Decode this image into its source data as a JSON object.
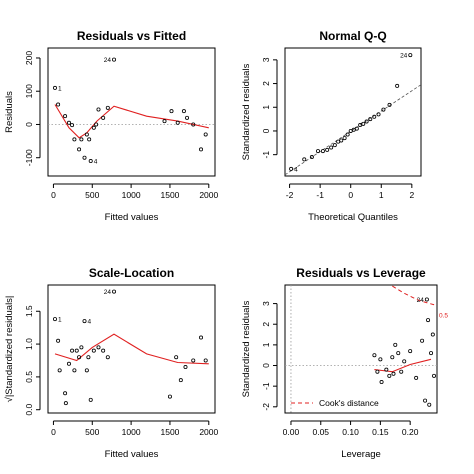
{
  "chart_data": [
    {
      "id": "resid-fitted",
      "type": "scatter",
      "title": "Residuals vs Fitted",
      "xlabel": "Fitted values",
      "ylabel": "Residuals",
      "xlim": [
        -70,
        2080
      ],
      "ylim": [
        -155,
        230
      ],
      "xticks": [
        "0",
        "500",
        "1000",
        "1500",
        "2000"
      ],
      "xtick_values": [
        0,
        500,
        1000,
        1500,
        2000
      ],
      "yticks": [
        "-100",
        "0",
        "100",
        "200"
      ],
      "ytick_values": [
        -100,
        0,
        100,
        200
      ],
      "points": [
        [
          20,
          110
        ],
        [
          60,
          60
        ],
        [
          150,
          25
        ],
        [
          200,
          5
        ],
        [
          240,
          -2
        ],
        [
          270,
          -45
        ],
        [
          330,
          -75
        ],
        [
          360,
          -45
        ],
        [
          400,
          -100
        ],
        [
          430,
          -30
        ],
        [
          460,
          -45
        ],
        [
          480,
          -110
        ],
        [
          520,
          -10
        ],
        [
          550,
          0
        ],
        [
          580,
          45
        ],
        [
          640,
          20
        ],
        [
          700,
          50
        ],
        [
          780,
          195
        ],
        [
          1430,
          10
        ],
        [
          1520,
          40
        ],
        [
          1600,
          5
        ],
        [
          1680,
          40
        ],
        [
          1720,
          20
        ],
        [
          1800,
          0
        ],
        [
          1900,
          -75
        ],
        [
          1960,
          -30
        ]
      ],
      "point_labels": [
        {
          "index": 17,
          "text": "24"
        },
        {
          "index": 0,
          "text": "1"
        },
        {
          "index": 11,
          "text": "4"
        }
      ],
      "smooth": [
        [
          20,
          60
        ],
        [
          200,
          -10
        ],
        [
          330,
          -40
        ],
        [
          430,
          -25
        ],
        [
          560,
          10
        ],
        [
          780,
          55
        ],
        [
          1200,
          25
        ],
        [
          1600,
          10
        ],
        [
          2000,
          -10
        ]
      ],
      "refline": {
        "type": "hline",
        "y": 0
      }
    },
    {
      "id": "normal-qq",
      "type": "scatter",
      "title": "Normal Q-Q",
      "xlabel": "Theoretical Quantiles",
      "ylabel": "Standardized residuals",
      "xlim": [
        -2.15,
        2.3
      ],
      "ylim": [
        -1.9,
        3.5
      ],
      "xticks": [
        "-2",
        "-1",
        "0",
        "1",
        "2"
      ],
      "xtick_values": [
        -2,
        -1,
        0,
        1,
        2
      ],
      "yticks": [
        "-1",
        "0",
        "1",
        "2",
        "3"
      ],
      "ytick_values": [
        -1,
        0,
        1,
        2,
        3
      ],
      "points": [
        [
          -1.95,
          -1.6
        ],
        [
          -1.52,
          -1.2
        ],
        [
          -1.27,
          -1.1
        ],
        [
          -1.07,
          -0.85
        ],
        [
          -0.91,
          -0.85
        ],
        [
          -0.77,
          -0.8
        ],
        [
          -0.64,
          -0.7
        ],
        [
          -0.52,
          -0.6
        ],
        [
          -0.41,
          -0.45
        ],
        [
          -0.31,
          -0.4
        ],
        [
          -0.2,
          -0.3
        ],
        [
          -0.1,
          -0.15
        ],
        [
          0.0,
          0.0
        ],
        [
          0.1,
          0.05
        ],
        [
          0.2,
          0.1
        ],
        [
          0.31,
          0.25
        ],
        [
          0.41,
          0.3
        ],
        [
          0.52,
          0.4
        ],
        [
          0.64,
          0.5
        ],
        [
          0.77,
          0.6
        ],
        [
          0.91,
          0.7
        ],
        [
          1.07,
          0.9
        ],
        [
          1.27,
          1.1
        ],
        [
          1.52,
          1.9
        ],
        [
          1.95,
          3.2
        ]
      ],
      "point_labels": [
        {
          "index": 24,
          "text": "24"
        },
        {
          "index": 0,
          "text": "4"
        }
      ],
      "refline": {
        "type": "line",
        "x0": -2.15,
        "y0": -1.85,
        "x1": 2.3,
        "y1": 1.95
      }
    },
    {
      "id": "scale-location",
      "type": "scatter",
      "title": "Scale-Location",
      "xlabel": "Fitted values",
      "ylabel": "√|Standardized residuals|",
      "xlim": [
        -70,
        2080
      ],
      "ylim": [
        -0.05,
        1.9
      ],
      "xticks": [
        "0",
        "500",
        "1000",
        "1500",
        "2000"
      ],
      "xtick_values": [
        0,
        500,
        1000,
        1500,
        2000
      ],
      "yticks": [
        "0.0",
        "0.5",
        "1.0",
        "1.5"
      ],
      "ytick_values": [
        0,
        0.5,
        1.0,
        1.5
      ],
      "points": [
        [
          20,
          1.38
        ],
        [
          60,
          1.05
        ],
        [
          80,
          0.6
        ],
        [
          150,
          0.25
        ],
        [
          160,
          0.1
        ],
        [
          200,
          0.7
        ],
        [
          240,
          0.9
        ],
        [
          270,
          0.6
        ],
        [
          300,
          0.9
        ],
        [
          330,
          0.8
        ],
        [
          360,
          0.95
        ],
        [
          400,
          1.35
        ],
        [
          430,
          0.6
        ],
        [
          450,
          0.8
        ],
        [
          480,
          0.15
        ],
        [
          520,
          0.9
        ],
        [
          580,
          0.95
        ],
        [
          640,
          0.9
        ],
        [
          700,
          0.8
        ],
        [
          780,
          1.8
        ],
        [
          1500,
          0.2
        ],
        [
          1580,
          0.8
        ],
        [
          1640,
          0.45
        ],
        [
          1700,
          0.65
        ],
        [
          1800,
          0.75
        ],
        [
          1900,
          1.1
        ],
        [
          1960,
          0.75
        ]
      ],
      "point_labels": [
        {
          "index": 19,
          "text": "24"
        },
        {
          "index": 0,
          "text": "1"
        },
        {
          "index": 11,
          "text": "4"
        }
      ],
      "smooth": [
        [
          20,
          0.85
        ],
        [
          300,
          0.75
        ],
        [
          500,
          0.95
        ],
        [
          780,
          1.15
        ],
        [
          1200,
          0.85
        ],
        [
          1600,
          0.72
        ],
        [
          2000,
          0.7
        ]
      ]
    },
    {
      "id": "resid-leverage",
      "type": "scatter",
      "title": "Residuals vs Leverage",
      "xlabel": "Leverage",
      "ylabel": "Standardized residuals",
      "xlim": [
        -0.01,
        0.245
      ],
      "ylim": [
        -2.3,
        3.9
      ],
      "xticks": [
        "0.00",
        "0.05",
        "0.10",
        "0.15",
        "0.20"
      ],
      "xtick_values": [
        0,
        0.05,
        0.1,
        0.15,
        0.2
      ],
      "yticks": [
        "-2",
        "-1",
        "0",
        "1",
        "2",
        "3"
      ],
      "ytick_values": [
        -2,
        -1,
        0,
        1,
        2,
        3
      ],
      "points": [
        [
          0.14,
          0.5
        ],
        [
          0.145,
          -0.3
        ],
        [
          0.15,
          0.3
        ],
        [
          0.152,
          -0.8
        ],
        [
          0.16,
          -0.2
        ],
        [
          0.165,
          -0.5
        ],
        [
          0.17,
          0.4
        ],
        [
          0.172,
          -0.4
        ],
        [
          0.175,
          1.0
        ],
        [
          0.18,
          0.6
        ],
        [
          0.185,
          -0.3
        ],
        [
          0.19,
          0.2
        ],
        [
          0.2,
          0.7
        ],
        [
          0.21,
          -0.6
        ],
        [
          0.22,
          1.2
        ],
        [
          0.225,
          -1.7
        ],
        [
          0.228,
          3.2
        ],
        [
          0.23,
          2.2
        ],
        [
          0.232,
          -1.9
        ],
        [
          0.235,
          0.6
        ],
        [
          0.238,
          1.5
        ],
        [
          0.24,
          -0.5
        ]
      ],
      "point_labels": [
        {
          "index": 16,
          "text": "24"
        }
      ],
      "smooth": [
        [
          0.14,
          -0.2
        ],
        [
          0.17,
          -0.3
        ],
        [
          0.2,
          0.05
        ],
        [
          0.235,
          0.3
        ]
      ],
      "refline": {
        "type": "hline",
        "y": 0
      },
      "refline_v": {
        "type": "vline",
        "x": 0
      },
      "cook_curve": [
        [
          0.15,
          4.2
        ],
        [
          0.19,
          3.5
        ],
        [
          0.215,
          3.15
        ],
        [
          0.245,
          2.9
        ]
      ],
      "cook_label": "0.5",
      "legend": {
        "label": "Cook's distance",
        "position": "bottom-left"
      }
    }
  ]
}
